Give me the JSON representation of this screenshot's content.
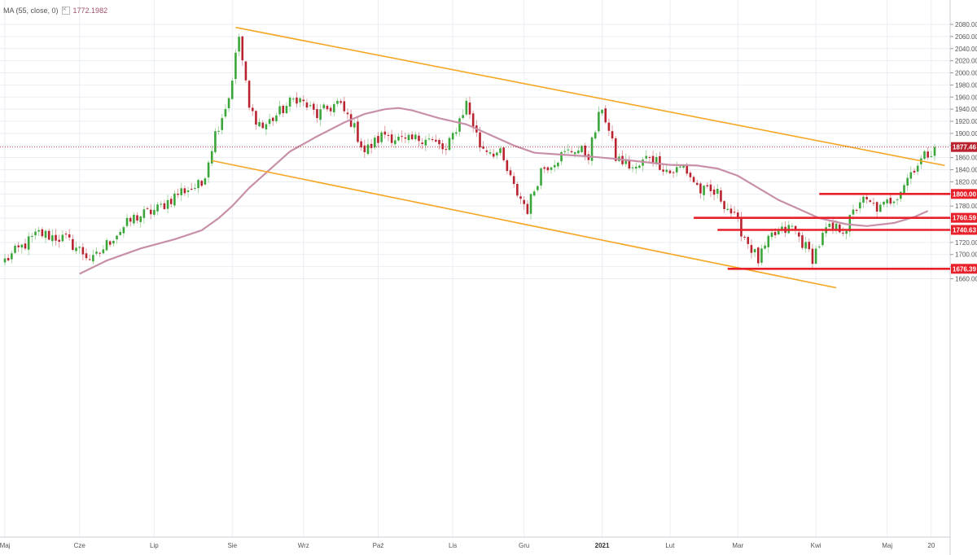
{
  "legend": {
    "label": "MA (55, close, 0)",
    "value": "1772.1982"
  },
  "colors": {
    "up": "#3aa63a",
    "down": "#b8232f",
    "ma": "#c890a8",
    "trend": "#f5a623",
    "level": "#e8202a",
    "grid": "#eaeef3"
  },
  "chart_data": {
    "type": "candlestick",
    "instrument_hint": "gold daily",
    "ylim": [
      1645,
      2100
    ],
    "y_ticks": [
      1660,
      1680,
      1700,
      1720,
      1740,
      1760,
      1780,
      1800,
      1820,
      1840,
      1860,
      1880,
      1900,
      1920,
      1940,
      1960,
      1980,
      2000,
      2020,
      2040,
      2060,
      2080
    ],
    "x_tick_labels": [
      {
        "label": "Maj",
        "i": 0,
        "bold": false
      },
      {
        "label": "Cze",
        "i": 22,
        "bold": false
      },
      {
        "label": "Lip",
        "i": 44,
        "bold": false
      },
      {
        "label": "Sie",
        "i": 67,
        "bold": false
      },
      {
        "label": "Wrz",
        "i": 88,
        "bold": false
      },
      {
        "label": "Paź",
        "i": 110,
        "bold": false
      },
      {
        "label": "Lis",
        "i": 132,
        "bold": false
      },
      {
        "label": "Gru",
        "i": 153,
        "bold": false
      },
      {
        "label": "2021",
        "i": 176,
        "bold": true
      },
      {
        "label": "Lut",
        "i": 196,
        "bold": false
      },
      {
        "label": "Mar",
        "i": 216,
        "bold": false
      },
      {
        "label": "Kwi",
        "i": 239,
        "bold": false
      },
      {
        "label": "Maj",
        "i": 260,
        "bold": false
      },
      {
        "label": "20",
        "i": 273,
        "bold": false
      }
    ],
    "anchors": [
      [
        0,
        1690
      ],
      [
        10,
        1735
      ],
      [
        18,
        1725
      ],
      [
        26,
        1690
      ],
      [
        32,
        1730
      ],
      [
        38,
        1760
      ],
      [
        45,
        1775
      ],
      [
        52,
        1805
      ],
      [
        58,
        1815
      ],
      [
        62,
        1900
      ],
      [
        66,
        1960
      ],
      [
        69,
        2060
      ],
      [
        72,
        1940
      ],
      [
        76,
        1910
      ],
      [
        82,
        1940
      ],
      [
        86,
        1960
      ],
      [
        92,
        1930
      ],
      [
        98,
        1950
      ],
      [
        102,
        1920
      ],
      [
        106,
        1870
      ],
      [
        112,
        1900
      ],
      [
        118,
        1885
      ],
      [
        124,
        1895
      ],
      [
        130,
        1870
      ],
      [
        136,
        1950
      ],
      [
        140,
        1880
      ],
      [
        146,
        1865
      ],
      [
        150,
        1810
      ],
      [
        154,
        1775
      ],
      [
        158,
        1840
      ],
      [
        163,
        1860
      ],
      [
        168,
        1875
      ],
      [
        172,
        1865
      ],
      [
        176,
        1945
      ],
      [
        180,
        1860
      ],
      [
        186,
        1840
      ],
      [
        190,
        1865
      ],
      [
        196,
        1835
      ],
      [
        200,
        1845
      ],
      [
        205,
        1805
      ],
      [
        210,
        1800
      ],
      [
        214,
        1770
      ],
      [
        218,
        1730
      ],
      [
        222,
        1690
      ],
      [
        226,
        1730
      ],
      [
        232,
        1745
      ],
      [
        238,
        1695
      ],
      [
        242,
        1740
      ],
      [
        248,
        1745
      ],
      [
        252,
        1790
      ],
      [
        258,
        1775
      ],
      [
        263,
        1800
      ],
      [
        268,
        1845
      ],
      [
        274,
        1878
      ]
    ],
    "last_index": 274,
    "ma": {
      "name": "MA (55, close, 0)",
      "points": [
        [
          22,
          1668
        ],
        [
          30,
          1690
        ],
        [
          40,
          1710
        ],
        [
          50,
          1725
        ],
        [
          58,
          1740
        ],
        [
          63,
          1760
        ],
        [
          67,
          1780
        ],
        [
          72,
          1810
        ],
        [
          78,
          1840
        ],
        [
          84,
          1870
        ],
        [
          92,
          1895
        ],
        [
          100,
          1918
        ],
        [
          106,
          1932
        ],
        [
          112,
          1940
        ],
        [
          116,
          1942
        ],
        [
          120,
          1938
        ],
        [
          128,
          1925
        ],
        [
          136,
          1915
        ],
        [
          142,
          1900
        ],
        [
          150,
          1880
        ],
        [
          156,
          1868
        ],
        [
          164,
          1865
        ],
        [
          172,
          1862
        ],
        [
          180,
          1858
        ],
        [
          188,
          1853
        ],
        [
          196,
          1848
        ],
        [
          204,
          1847
        ],
        [
          210,
          1842
        ],
        [
          216,
          1830
        ],
        [
          222,
          1810
        ],
        [
          228,
          1790
        ],
        [
          234,
          1775
        ],
        [
          240,
          1760
        ],
        [
          248,
          1750
        ],
        [
          254,
          1747
        ],
        [
          262,
          1752
        ],
        [
          268,
          1762
        ],
        [
          272,
          1772
        ]
      ]
    },
    "trendlines": [
      {
        "from": [
          68,
          2075
        ],
        "to": [
          277,
          1847
        ]
      },
      {
        "from": [
          61,
          1855
        ],
        "to": [
          245,
          1645
        ]
      }
    ],
    "levels": [
      {
        "value": 1800.0,
        "label": "1800.00",
        "from_i": 240
      },
      {
        "value": 1760.59,
        "label": "1760.59",
        "from_i": 203
      },
      {
        "value": 1740.63,
        "label": "1740.63",
        "from_i": 210
      },
      {
        "value": 1676.39,
        "label": "1676.39",
        "from_i": 213
      }
    ],
    "last_price": {
      "value": 1877.46,
      "label": "1877.46"
    }
  }
}
